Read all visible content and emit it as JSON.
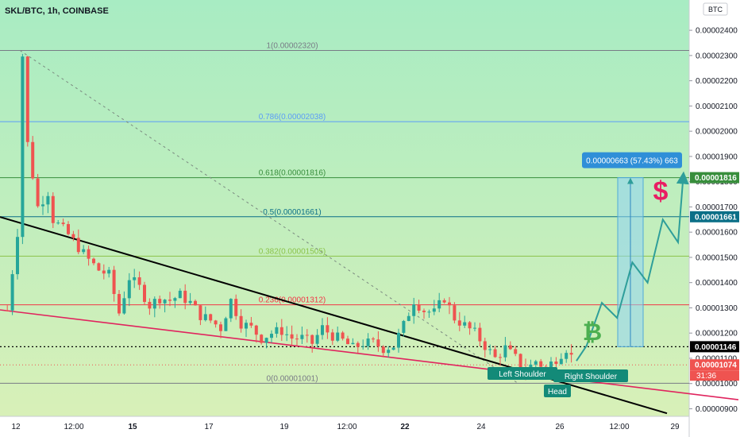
{
  "header": {
    "symbol_line": "SKL/BTC, 1h, COINBASE",
    "currency_badge": "BTC"
  },
  "chart_data": {
    "type": "candlestick",
    "symbol": "SKL/BTC",
    "interval": "1h",
    "exchange": "COINBASE",
    "ylim": [
      8.7e-06,
      2.52e-05
    ],
    "y_ticks": [
      "0.00002400",
      "0.00002300",
      "0.00002200",
      "0.00002100",
      "0.00002000",
      "0.00001900",
      "0.00001800",
      "0.00001700",
      "0.00001600",
      "0.00001500",
      "0.00001400",
      "0.00001300",
      "0.00001200",
      "0.00001100",
      "0.00001000",
      "0.00000900"
    ],
    "x_ticks": [
      "12",
      "12:00",
      "15",
      "17",
      "19",
      "12:00",
      "22",
      "24",
      "26",
      "12:00",
      "29"
    ],
    "fib_levels": [
      {
        "label": "1(0.00002320)",
        "value": 2.32e-05,
        "color": "#787b86"
      },
      {
        "label": "0.786(0.00002038)",
        "value": 2.038e-05,
        "color": "#5b9cf6"
      },
      {
        "label": "0.618(0.00001816)",
        "value": 1.816e-05,
        "color": "#388e3c"
      },
      {
        "label": "0.5(0.00001661)",
        "value": 1.661e-05,
        "color": "#0b6f87"
      },
      {
        "label": "0.382(0.00001505)",
        "value": 1.505e-05,
        "color": "#8bc34a"
      },
      {
        "label": "0.236(0.00001312)",
        "value": 1.312e-05,
        "color": "#f23645"
      },
      {
        "label": "0(0.00001001)",
        "value": 1.001e-05,
        "color": "#787b86"
      }
    ],
    "price_tags": [
      {
        "text": "0.00001816",
        "value": 1.816e-05,
        "bg": "#388e3c",
        "fg": "#ffffff"
      },
      {
        "text": "0.00001661",
        "value": 1.661e-05,
        "bg": "#0b6f87",
        "fg": "#ffffff"
      },
      {
        "text": "0.00001146",
        "value": 1.146e-05,
        "bg": "#000000",
        "fg": "#ffffff"
      },
      {
        "text": "0.00001074",
        "value": 1.074e-05,
        "bg": "#ef5350",
        "fg": "#ffffff"
      }
    ],
    "countdown": "31:36",
    "current_price": 1.074e-05,
    "neckline_price": 1.146e-05,
    "measure_label": "0.00000663 (57.43%) 663",
    "pattern_labels": [
      "Left Shoulder",
      "Head",
      "Right Shoulder"
    ],
    "dollar_sign": "$",
    "bitcoin_sign": "₿",
    "colors": {
      "up": "#26a69a",
      "down": "#ef5350",
      "background_top": "#a8ecc3",
      "background_bottom": "#d8f0b8",
      "trendline_down": "#000000",
      "trendline_support": "#e0245e",
      "projection": "#2e9e9a",
      "measure_box": "#8fd3f4",
      "pattern_label_bg": "#138a78"
    },
    "price_path": [
      [
        0,
        1.29e-05
      ],
      [
        2,
        1.6e-05
      ],
      [
        3,
        2.3e-05
      ],
      [
        4,
        1.95e-05
      ],
      [
        6,
        1.7e-05
      ],
      [
        8,
        1.76e-05
      ],
      [
        9,
        1.65e-05
      ],
      [
        12,
        1.59e-05
      ],
      [
        14,
        1.54e-05
      ],
      [
        16,
        1.49e-05
      ],
      [
        18,
        1.45e-05
      ],
      [
        20,
        1.43e-05
      ],
      [
        22,
        1.28e-05
      ],
      [
        24,
        1.42e-05
      ],
      [
        26,
        1.38e-05
      ],
      [
        28,
        1.31e-05
      ],
      [
        30,
        1.34e-05
      ],
      [
        32,
        1.33e-05
      ],
      [
        34,
        1.35e-05
      ],
      [
        36,
        1.32e-05
      ],
      [
        38,
        1.27e-05
      ],
      [
        40,
        1.25e-05
      ],
      [
        42,
        1.22e-05
      ],
      [
        44,
        1.33e-05
      ],
      [
        46,
        1.24e-05
      ],
      [
        48,
        1.22e-05
      ],
      [
        50,
        1.18e-05
      ],
      [
        52,
        1.2e-05
      ],
      [
        54,
        1.21e-05
      ],
      [
        56,
        1.18e-05
      ],
      [
        58,
        1.18e-05
      ],
      [
        60,
        1.16e-05
      ],
      [
        62,
        1.22e-05
      ],
      [
        64,
        1.19e-05
      ],
      [
        66,
        1.17e-05
      ],
      [
        68,
        1.14e-05
      ],
      [
        70,
        1.16e-05
      ],
      [
        72,
        1.16e-05
      ],
      [
        74,
        1.14e-05
      ],
      [
        76,
        1.15e-05
      ],
      [
        78,
        1.23e-05
      ],
      [
        80,
        1.33e-05
      ],
      [
        82,
        1.29e-05
      ],
      [
        84,
        1.28e-05
      ],
      [
        86,
        1.34e-05
      ],
      [
        88,
        1.26e-05
      ],
      [
        90,
        1.23e-05
      ],
      [
        92,
        1.2e-05
      ],
      [
        94,
        1.15e-05
      ],
      [
        96,
        1.1e-05
      ],
      [
        98,
        1.14e-05
      ],
      [
        100,
        1.1e-05
      ],
      [
        102,
        1.05e-05
      ],
      [
        104,
        1.09e-05
      ],
      [
        106,
        1.06e-05
      ],
      [
        108,
        1.1e-05
      ],
      [
        110,
        1.14e-05
      ],
      [
        112,
        1.074e-05
      ]
    ],
    "projection_path": [
      [
        112,
        1.09e-05
      ],
      [
        114,
        1.15e-05
      ],
      [
        117,
        1.32e-05
      ],
      [
        120,
        1.26e-05
      ],
      [
        123,
        1.48e-05
      ],
      [
        126,
        1.4e-05
      ],
      [
        129,
        1.65e-05
      ],
      [
        132,
        1.56e-05
      ],
      [
        133,
        1.816e-05
      ]
    ]
  }
}
